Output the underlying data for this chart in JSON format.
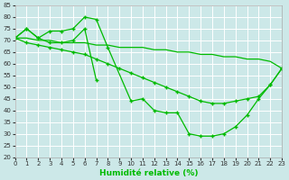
{
  "xlabel": "Humidité relative (%)",
  "bg_color": "#cce8e8",
  "grid_color": "#ffffff",
  "line_color": "#00bb00",
  "ylim": [
    20,
    85
  ],
  "xlim": [
    0,
    23
  ],
  "yticks": [
    20,
    25,
    30,
    35,
    40,
    45,
    50,
    55,
    60,
    65,
    70,
    75,
    80,
    85
  ],
  "xticks": [
    0,
    1,
    2,
    3,
    4,
    5,
    6,
    7,
    8,
    9,
    10,
    11,
    12,
    13,
    14,
    15,
    16,
    17,
    18,
    19,
    20,
    21,
    22,
    23
  ],
  "series1_x": [
    0,
    1,
    2,
    3,
    4,
    5,
    6,
    7,
    8,
    10,
    11,
    12,
    13,
    14,
    15,
    16,
    17,
    18,
    19,
    20,
    21,
    22,
    23
  ],
  "series1_y": [
    71,
    75,
    71,
    74,
    74,
    75,
    80,
    79,
    67,
    44,
    45,
    40,
    39,
    39,
    30,
    29,
    29,
    30,
    33,
    38,
    45,
    51,
    58
  ],
  "series2_x": [
    0,
    1,
    2,
    3,
    4,
    5,
    6,
    7
  ],
  "series2_y": [
    71,
    75,
    71,
    69,
    69,
    70,
    75,
    53
  ],
  "series3_x": [
    0,
    1,
    2,
    3,
    4,
    5,
    6,
    7,
    8,
    9,
    10,
    11,
    12,
    13,
    14,
    15,
    16,
    17,
    18,
    19,
    20,
    21,
    22,
    23
  ],
  "series3_y": [
    71,
    71,
    70,
    70,
    69,
    69,
    69,
    68,
    68,
    67,
    67,
    67,
    66,
    66,
    65,
    65,
    64,
    64,
    63,
    63,
    62,
    62,
    61,
    58
  ],
  "series4_x": [
    0,
    1,
    2,
    3,
    4,
    5,
    6,
    7,
    8,
    9,
    10,
    11,
    12,
    13,
    14,
    15,
    16,
    17,
    18,
    19,
    20,
    21,
    22,
    23
  ],
  "series4_y": [
    71,
    69,
    68,
    67,
    66,
    65,
    64,
    62,
    60,
    58,
    56,
    54,
    52,
    50,
    48,
    46,
    44,
    43,
    43,
    44,
    45,
    46,
    51,
    58
  ]
}
